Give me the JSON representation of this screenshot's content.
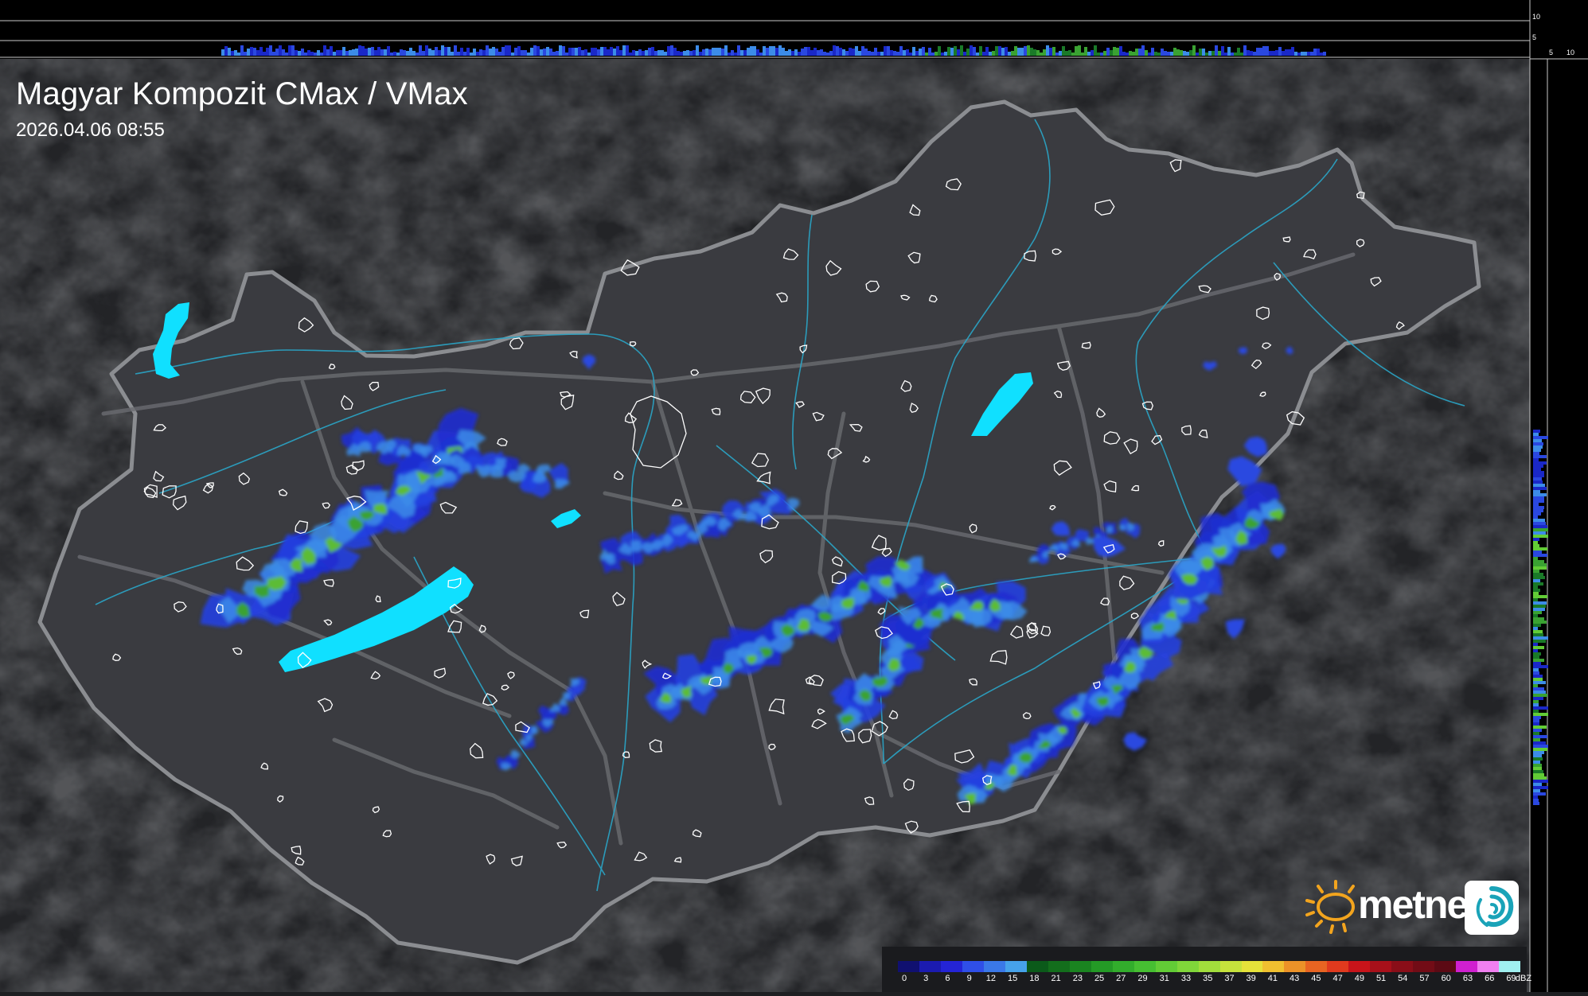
{
  "map": {
    "title": "Magyar Kompozit CMax / VMax",
    "timestamp": "2026.04.06 08:55",
    "brand": "metnet",
    "precip_unit": "dBZ",
    "legend_ticks": [
      "0",
      "3",
      "6",
      "9",
      "12",
      "15",
      "18",
      "21",
      "23",
      "25",
      "27",
      "29",
      "31",
      "33",
      "35",
      "37",
      "39",
      "41",
      "43",
      "45",
      "47",
      "49",
      "51",
      "54",
      "57",
      "60",
      "63",
      "66",
      "69"
    ],
    "legend_colors": [
      "#101070",
      "#1b1bb0",
      "#2424d6",
      "#2f4fe8",
      "#3a78e8",
      "#46a2ea",
      "#0b5a1a",
      "#136e1c",
      "#1a8420",
      "#249a26",
      "#32ad2c",
      "#46bf32",
      "#62cc36",
      "#80d63a",
      "#a2de3c",
      "#c6e23c",
      "#e6e23a",
      "#f0c030",
      "#ec9228",
      "#e86422",
      "#e03a1e",
      "#c8141a",
      "#a8101a",
      "#8a0e18",
      "#720c16",
      "#5c0a14",
      "#d020d0",
      "#f080f0",
      "#a0f0f0"
    ],
    "top_profile_ticks": [
      "10",
      "5"
    ],
    "side_profile_ticks": [
      "5",
      "10"
    ],
    "colors": {
      "background": "#1e1f22",
      "land": "#38393d",
      "border": "#8a8c90",
      "lakes": "#10e0ff",
      "rivers": "#2aa6c8"
    }
  }
}
